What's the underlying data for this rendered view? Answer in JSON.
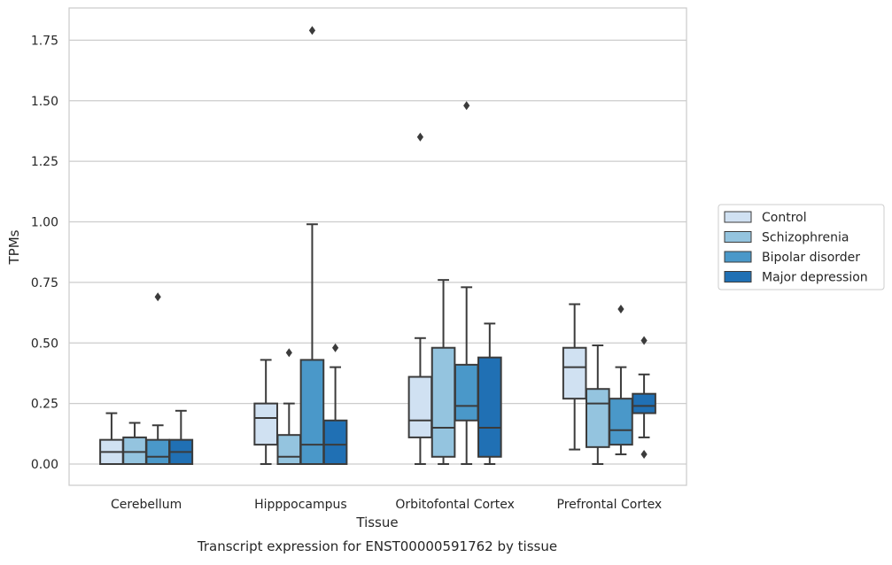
{
  "chart_data": {
    "type": "box",
    "title": "",
    "caption": "Transcript expression for ENST00000591762 by tissue",
    "xlabel": "Tissue",
    "ylabel": "TPMs",
    "ylim": [
      -0.09,
      1.88
    ],
    "yticks": [
      "0.00",
      "0.25",
      "0.50",
      "0.75",
      "1.00",
      "1.25",
      "1.50",
      "1.75"
    ],
    "ytick_values": [
      0,
      0.25,
      0.5,
      0.75,
      1.0,
      1.25,
      1.5,
      1.75
    ],
    "grid": true,
    "legend_position": "right",
    "categories": [
      "Cerebellum",
      "Hipppocampus",
      "Orbitofontal Cortex",
      "Prefrontal Cortex"
    ],
    "series": [
      {
        "name": "Control",
        "color": "#d0e1f2",
        "boxes": [
          {
            "whislo": 0.0,
            "q1": 0.0,
            "med": 0.05,
            "q3": 0.1,
            "whishi": 0.21,
            "fliers": []
          },
          {
            "whislo": 0.0,
            "q1": 0.08,
            "med": 0.19,
            "q3": 0.25,
            "whishi": 0.43,
            "fliers": []
          },
          {
            "whislo": 0.0,
            "q1": 0.11,
            "med": 0.18,
            "q3": 0.36,
            "whishi": 0.52,
            "fliers": [
              1.35
            ]
          },
          {
            "whislo": 0.06,
            "q1": 0.27,
            "med": 0.4,
            "q3": 0.48,
            "whishi": 0.66,
            "fliers": []
          }
        ]
      },
      {
        "name": "Schizophrenia",
        "color": "#94c4df",
        "boxes": [
          {
            "whislo": 0.0,
            "q1": 0.0,
            "med": 0.05,
            "q3": 0.11,
            "whishi": 0.17,
            "fliers": []
          },
          {
            "whislo": 0.0,
            "q1": 0.0,
            "med": 0.03,
            "q3": 0.12,
            "whishi": 0.25,
            "fliers": [
              0.46
            ]
          },
          {
            "whislo": 0.0,
            "q1": 0.03,
            "med": 0.15,
            "q3": 0.48,
            "whishi": 0.76,
            "fliers": []
          },
          {
            "whislo": 0.0,
            "q1": 0.07,
            "med": 0.25,
            "q3": 0.31,
            "whishi": 0.49,
            "fliers": []
          }
        ]
      },
      {
        "name": "Bipolar disorder",
        "color": "#4a98c9",
        "boxes": [
          {
            "whislo": 0.0,
            "q1": 0.0,
            "med": 0.03,
            "q3": 0.1,
            "whishi": 0.16,
            "fliers": [
              0.69
            ]
          },
          {
            "whislo": 0.0,
            "q1": 0.0,
            "med": 0.08,
            "q3": 0.43,
            "whishi": 0.99,
            "fliers": [
              1.79
            ]
          },
          {
            "whislo": 0.0,
            "q1": 0.18,
            "med": 0.24,
            "q3": 0.41,
            "whishi": 0.73,
            "fliers": [
              1.48
            ]
          },
          {
            "whislo": 0.04,
            "q1": 0.08,
            "med": 0.14,
            "q3": 0.27,
            "whishi": 0.4,
            "fliers": [
              0.64
            ]
          }
        ]
      },
      {
        "name": "Major depression",
        "color": "#2070b4",
        "boxes": [
          {
            "whislo": 0.0,
            "q1": 0.0,
            "med": 0.05,
            "q3": 0.1,
            "whishi": 0.22,
            "fliers": []
          },
          {
            "whislo": 0.0,
            "q1": 0.0,
            "med": 0.08,
            "q3": 0.18,
            "whishi": 0.4,
            "fliers": [
              0.48
            ]
          },
          {
            "whislo": 0.0,
            "q1": 0.03,
            "med": 0.15,
            "q3": 0.44,
            "whishi": 0.58,
            "fliers": []
          },
          {
            "whislo": 0.11,
            "q1": 0.21,
            "med": 0.24,
            "q3": 0.29,
            "whishi": 0.37,
            "fliers": [
              0.04,
              0.51
            ]
          }
        ]
      }
    ]
  }
}
